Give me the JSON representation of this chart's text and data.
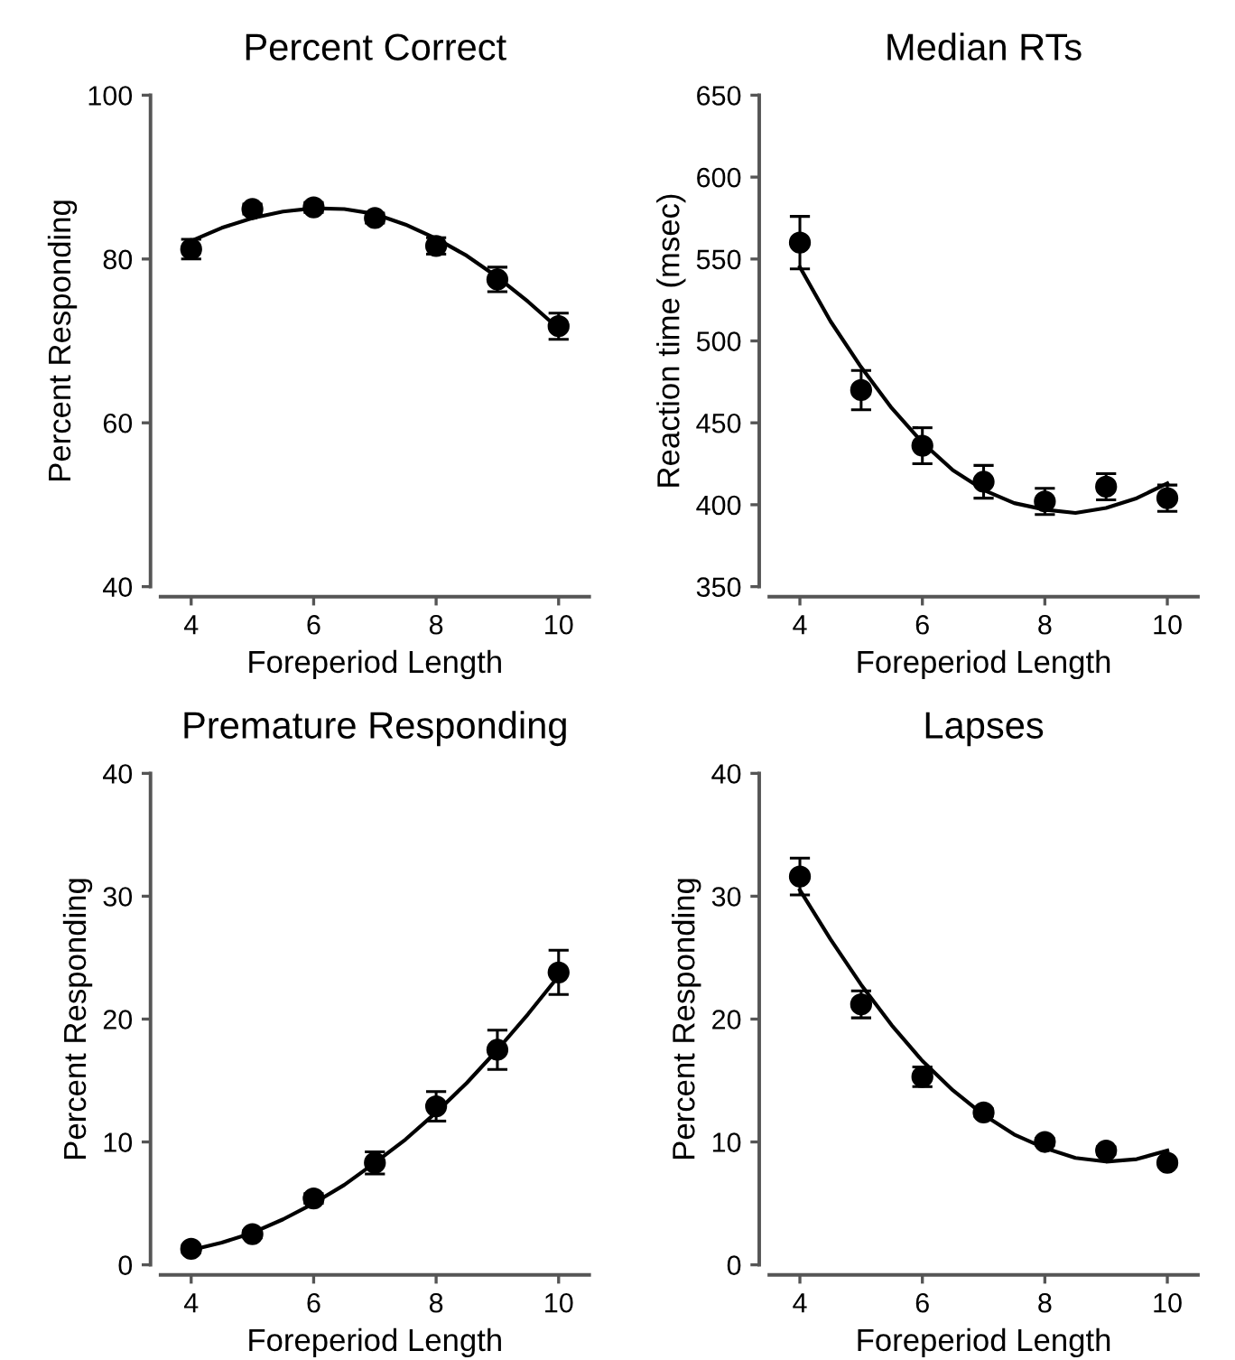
{
  "chart_data": [
    {
      "type": "scatter",
      "title": "Percent Correct",
      "xlabel": "Foreperiod Length",
      "ylabel": "Percent Responding",
      "xlim": [
        3.5,
        10.5
      ],
      "xticks": [
        4,
        6,
        8,
        10
      ],
      "ylim": [
        40,
        100
      ],
      "yticks": [
        40,
        60,
        80,
        100
      ],
      "grid": false,
      "legend": false,
      "series": [
        {
          "marker": "circle",
          "color": "#000000",
          "x": [
            4,
            5,
            6,
            7,
            8,
            9,
            10
          ],
          "values": [
            81.2,
            86.1,
            86.3,
            85.0,
            81.6,
            77.5,
            71.8
          ],
          "errors": [
            1.2,
            0.6,
            0.6,
            0.6,
            1.0,
            1.5,
            1.6
          ]
        },
        {
          "type": "line",
          "color": "#000000",
          "line_style": "solid",
          "x": [
            4,
            4.5,
            5,
            5.5,
            6,
            6.5,
            7,
            7.5,
            8,
            8.5,
            9,
            9.5,
            10
          ],
          "values": [
            82.2,
            83.8,
            85.0,
            85.8,
            86.2,
            86.1,
            85.5,
            84.2,
            82.5,
            80.4,
            77.8,
            74.8,
            71.5
          ]
        }
      ]
    },
    {
      "type": "scatter",
      "title": "Median RTs",
      "xlabel": "Foreperiod Length",
      "ylabel": "Reaction time (msec)",
      "xlim": [
        3.5,
        10.5
      ],
      "xticks": [
        4,
        6,
        8,
        10
      ],
      "ylim": [
        350,
        650
      ],
      "yticks": [
        350,
        400,
        450,
        500,
        550,
        600,
        650
      ],
      "grid": false,
      "legend": false,
      "series": [
        {
          "marker": "circle",
          "color": "#000000",
          "x": [
            4,
            5,
            6,
            7,
            8,
            9,
            10
          ],
          "values": [
            560,
            470,
            436,
            414,
            402,
            411,
            404
          ],
          "errors": [
            16,
            12,
            11,
            10,
            8,
            8,
            8
          ]
        },
        {
          "type": "line",
          "color": "#000000",
          "line_style": "solid",
          "x": [
            4,
            4.5,
            5,
            5.5,
            6,
            6.5,
            7,
            7.5,
            8,
            8.5,
            9,
            9.5,
            10
          ],
          "values": [
            545,
            512,
            484,
            459,
            438,
            421,
            409,
            401,
            397,
            395,
            398,
            404,
            413
          ]
        }
      ]
    },
    {
      "type": "scatter",
      "title": "Premature Responding",
      "xlabel": "Foreperiod Length",
      "ylabel": "Percent Responding",
      "xlim": [
        3.5,
        10.5
      ],
      "xticks": [
        4,
        6,
        8,
        10
      ],
      "ylim": [
        0,
        40
      ],
      "yticks": [
        0,
        10,
        20,
        30,
        40
      ],
      "grid": false,
      "legend": false,
      "series": [
        {
          "marker": "circle",
          "color": "#000000",
          "x": [
            4,
            5,
            6,
            7,
            8,
            9,
            10
          ],
          "values": [
            1.3,
            2.5,
            5.4,
            8.3,
            12.9,
            17.5,
            23.8
          ],
          "errors": [
            0.3,
            0.3,
            0.4,
            0.9,
            1.2,
            1.6,
            1.8
          ]
        },
        {
          "type": "line",
          "color": "#000000",
          "line_style": "solid",
          "x": [
            4,
            4.5,
            5,
            5.5,
            6,
            6.5,
            7,
            7.5,
            8,
            8.5,
            9,
            9.5,
            10
          ],
          "values": [
            1.2,
            1.8,
            2.6,
            3.7,
            5.0,
            6.5,
            8.3,
            10.2,
            12.4,
            14.8,
            17.5,
            20.4,
            23.5
          ]
        }
      ]
    },
    {
      "type": "scatter",
      "title": "Lapses",
      "xlabel": "Foreperiod Length",
      "ylabel": "Percent Responding",
      "xlim": [
        3.5,
        10.5
      ],
      "xticks": [
        4,
        6,
        8,
        10
      ],
      "ylim": [
        0,
        40
      ],
      "yticks": [
        0,
        10,
        20,
        30,
        40
      ],
      "grid": false,
      "legend": false,
      "series": [
        {
          "marker": "circle",
          "color": "#000000",
          "x": [
            4,
            5,
            6,
            7,
            8,
            9,
            10
          ],
          "values": [
            31.6,
            21.2,
            15.3,
            12.4,
            10.0,
            9.3,
            8.3
          ],
          "errors": [
            1.5,
            1.1,
            0.8,
            0.3,
            0.3,
            0.3,
            0.3
          ]
        },
        {
          "type": "line",
          "color": "#000000",
          "line_style": "solid",
          "x": [
            4,
            4.5,
            5,
            5.5,
            6,
            6.5,
            7,
            7.5,
            8,
            8.5,
            9,
            9.5,
            10
          ],
          "values": [
            30.5,
            26.5,
            22.8,
            19.5,
            16.6,
            14.2,
            12.2,
            10.6,
            9.5,
            8.7,
            8.4,
            8.6,
            9.3
          ]
        }
      ]
    }
  ]
}
